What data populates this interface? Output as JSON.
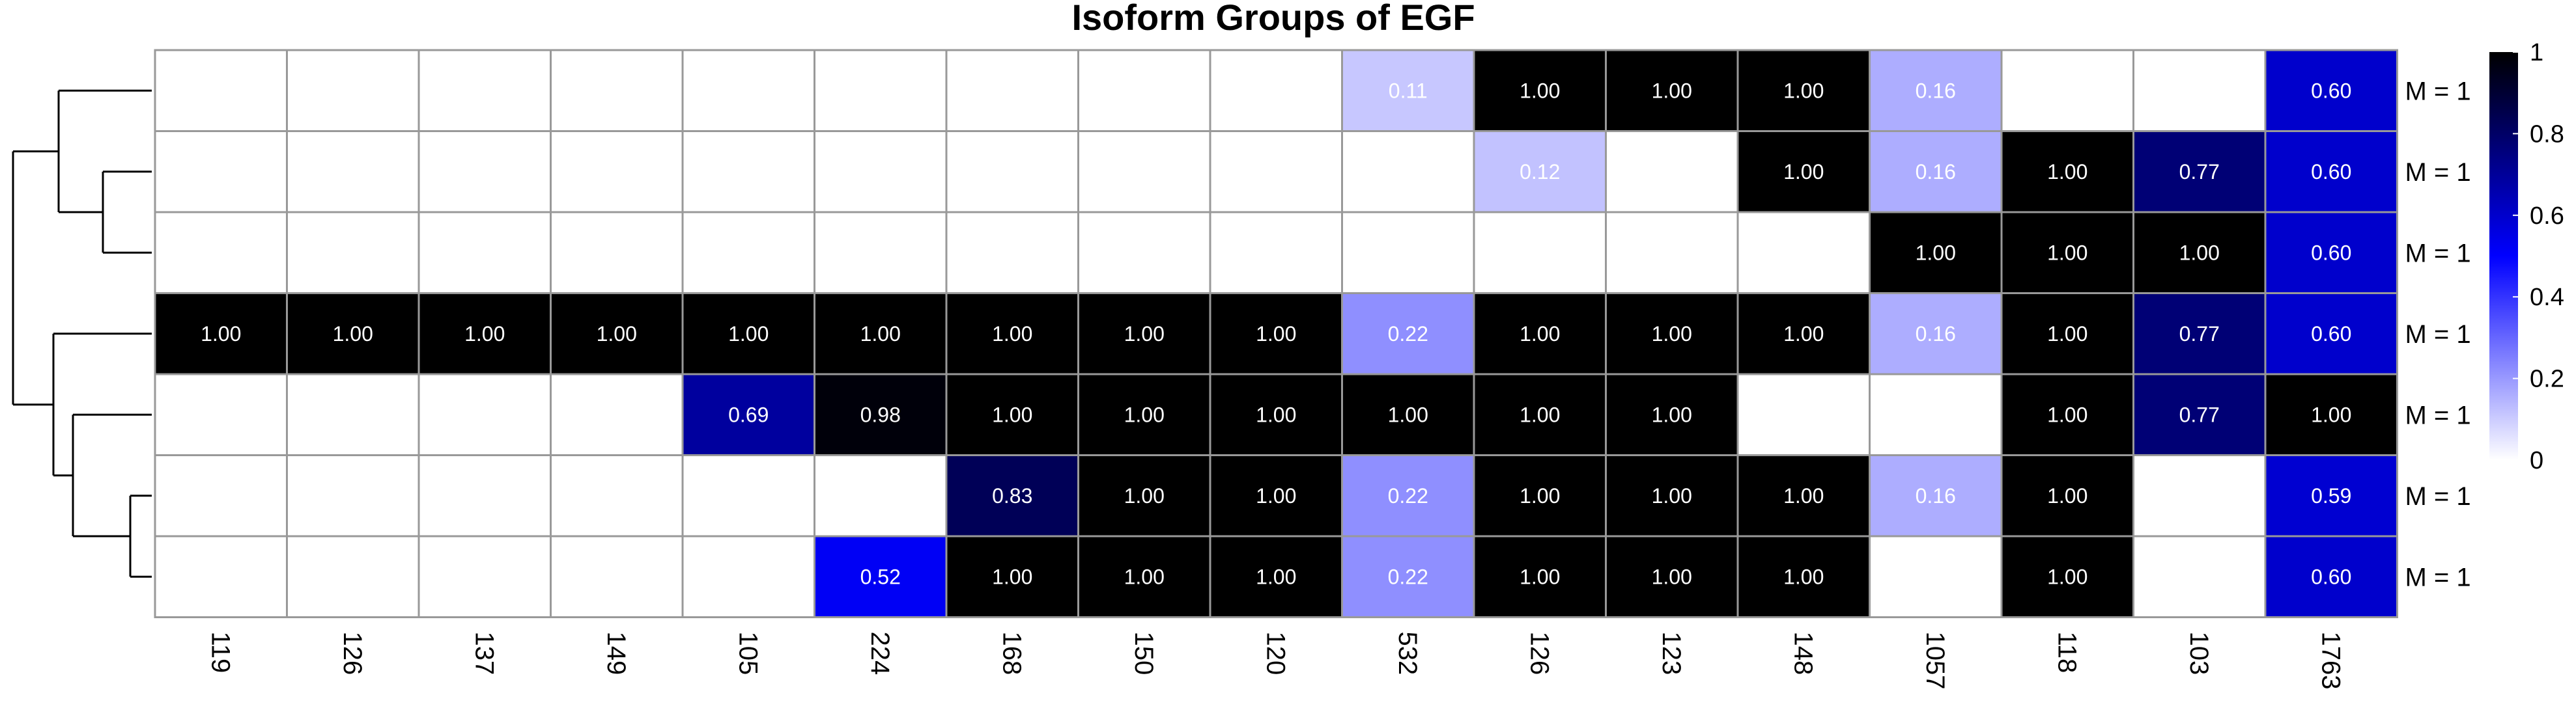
{
  "chart_data": {
    "type": "heatmap",
    "title": "Isoform Groups of EGF",
    "columns": [
      "119",
      "126",
      "137",
      "149",
      "105",
      "224",
      "168",
      "150",
      "120",
      "532",
      "126",
      "123",
      "148",
      "1057",
      "118",
      "103",
      "1763"
    ],
    "row_labels": [
      "M = 1",
      "M = 1",
      "M = 1",
      "M = 1",
      "M = 1",
      "M = 1",
      "M = 1"
    ],
    "values": [
      [
        0,
        0,
        0,
        0,
        0,
        0,
        0,
        0,
        0,
        0.11,
        1.0,
        1.0,
        1.0,
        0.16,
        0,
        0,
        0.6
      ],
      [
        0,
        0,
        0,
        0,
        0,
        0,
        0,
        0,
        0,
        0,
        0.12,
        0,
        1.0,
        0.16,
        1.0,
        0.77,
        0.6
      ],
      [
        0,
        0,
        0,
        0,
        0,
        0,
        0,
        0,
        0,
        0,
        0,
        0,
        0,
        1.0,
        1.0,
        1.0,
        0.6
      ],
      [
        1.0,
        1.0,
        1.0,
        1.0,
        1.0,
        1.0,
        1.0,
        1.0,
        1.0,
        0.22,
        1.0,
        1.0,
        1.0,
        0.16,
        1.0,
        0.77,
        0.6
      ],
      [
        0,
        0,
        0,
        0,
        0.69,
        0.98,
        1.0,
        1.0,
        1.0,
        1.0,
        1.0,
        1.0,
        0,
        0,
        1.0,
        0.77,
        1.0
      ],
      [
        0,
        0,
        0,
        0,
        0,
        0,
        0.83,
        1.0,
        1.0,
        0.22,
        1.0,
        1.0,
        1.0,
        0.16,
        1.0,
        0,
        0.59
      ],
      [
        0,
        0,
        0,
        0,
        0,
        0.52,
        1.0,
        1.0,
        1.0,
        0.22,
        1.0,
        1.0,
        1.0,
        0,
        1.0,
        0,
        0.6
      ]
    ],
    "labels": [
      [
        "",
        "",
        "",
        "",
        "",
        "",
        "",
        "",
        "",
        "0.11",
        "1.00",
        "1.00",
        "1.00",
        "0.16",
        "",
        "",
        "0.60"
      ],
      [
        "",
        "",
        "",
        "",
        "",
        "",
        "",
        "",
        "",
        "",
        "0.12",
        "",
        "1.00",
        "0.16",
        "1.00",
        "0.77",
        "0.60"
      ],
      [
        "",
        "",
        "",
        "",
        "",
        "",
        "",
        "",
        "",
        "",
        "",
        "",
        "",
        "1.00",
        "1.00",
        "1.00",
        "0.60"
      ],
      [
        "1.00",
        "1.00",
        "1.00",
        "1.00",
        "1.00",
        "1.00",
        "1.00",
        "1.00",
        "1.00",
        "0.22",
        "1.00",
        "1.00",
        "1.00",
        "0.16",
        "1.00",
        "0.77",
        "0.60"
      ],
      [
        "",
        "",
        "",
        "",
        "0.69",
        "0.98",
        "1.00",
        "1.00",
        "1.00",
        "1.00",
        "1.00",
        "1.00",
        "",
        "",
        "1.00",
        "0.77",
        "1.00"
      ],
      [
        "",
        "",
        "",
        "",
        "",
        "",
        "0.83",
        "1.00",
        "1.00",
        "0.22",
        "1.00",
        "1.00",
        "1.00",
        "0.16",
        "1.00",
        "",
        "0.59"
      ],
      [
        "",
        "",
        "",
        "",
        "",
        "0.52",
        "1.00",
        "1.00",
        "1.00",
        "0.22",
        "1.00",
        "1.00",
        "1.00",
        "",
        "1.00",
        "",
        "0.60"
      ]
    ],
    "color_scale": {
      "range": [
        0,
        1
      ],
      "stops": [
        {
          "value": 0,
          "color": "#ffffff"
        },
        {
          "value": 0.5,
          "color": "#0000ff"
        },
        {
          "value": 1,
          "color": "#000000"
        }
      ],
      "ticks": [
        "0",
        "0.2",
        "0.4",
        "0.6",
        "0.8",
        "1"
      ]
    },
    "grid_color": "#999999",
    "dendrogram": "left, row clustering",
    "legend": "right"
  }
}
